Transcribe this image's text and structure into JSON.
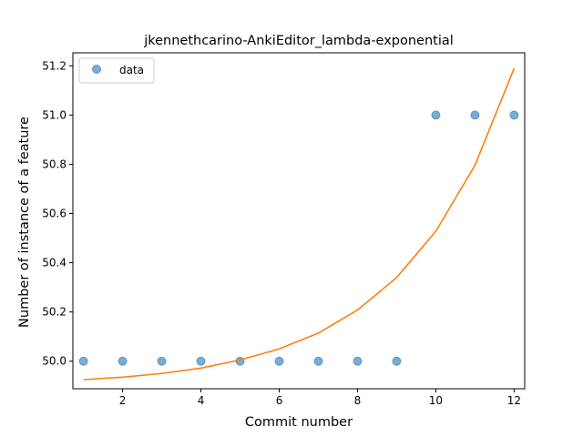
{
  "chart_data": {
    "type": "scatter",
    "title": "jkennethcarino-AnkiEditor_lambda-exponential",
    "xlabel": "Commit number",
    "ylabel": "Number of instance of a feature",
    "xlim": [
      0.73,
      12.27
    ],
    "ylim": [
      49.888,
      51.253
    ],
    "xticks": [
      2,
      4,
      6,
      8,
      10,
      12
    ],
    "yticks": [
      50.0,
      50.2,
      50.4,
      50.6,
      50.8,
      51.0,
      51.2
    ],
    "ytick_labels": [
      "50.0",
      "50.2",
      "50.4",
      "50.6",
      "50.8",
      "51.0",
      "51.2"
    ],
    "grid": false,
    "legend_position": "top-left",
    "series": [
      {
        "name": "data",
        "kind": "points",
        "color": "#1f77b4",
        "x": [
          1,
          2,
          3,
          4,
          5,
          6,
          7,
          8,
          9,
          10,
          11,
          12
        ],
        "y": [
          50,
          50,
          50,
          50,
          50,
          50,
          50,
          50,
          50,
          51,
          51,
          51
        ]
      },
      {
        "kind": "line",
        "color": "#ff7f0e",
        "x": [
          1,
          2,
          3,
          4,
          5,
          6,
          7,
          8,
          9,
          10,
          11,
          12
        ],
        "y": [
          49.925,
          49.935,
          49.95,
          49.972,
          50.005,
          50.05,
          50.114,
          50.208,
          50.34,
          50.528,
          50.796,
          51.19
        ]
      }
    ]
  }
}
